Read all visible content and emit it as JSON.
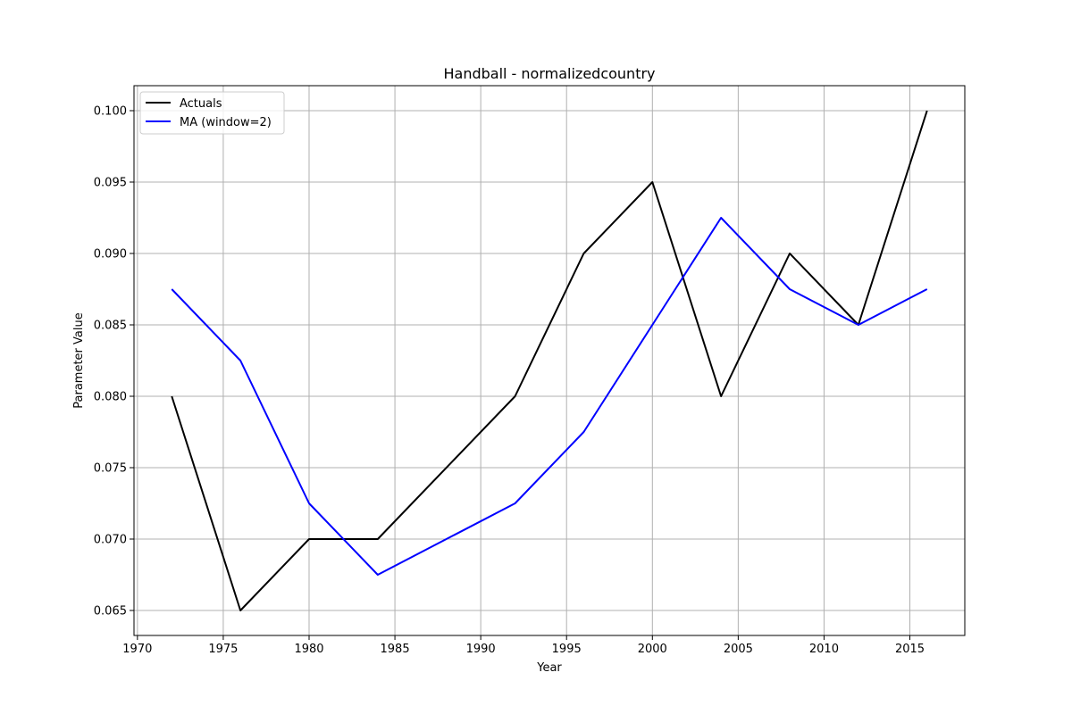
{
  "chart_data": {
    "type": "line",
    "title": "Handball - normalizedcountry",
    "xlabel": "Year",
    "ylabel": "Parameter Value",
    "xlim": [
      1969.8,
      2018.2
    ],
    "ylim": [
      0.06325,
      0.10175
    ],
    "xticks": [
      1970,
      1975,
      1980,
      1985,
      1990,
      1995,
      2000,
      2005,
      2010,
      2015
    ],
    "xtick_labels": [
      "1970",
      "1975",
      "1980",
      "1985",
      "1990",
      "1995",
      "2000",
      "2005",
      "2010",
      "2015"
    ],
    "yticks": [
      0.065,
      0.07,
      0.075,
      0.08,
      0.085,
      0.09,
      0.095,
      0.1
    ],
    "ytick_labels": [
      "0.065",
      "0.070",
      "0.075",
      "0.080",
      "0.085",
      "0.090",
      "0.095",
      "0.100"
    ],
    "grid": true,
    "legend_position": "top-left",
    "x": [
      1972,
      1976,
      1980,
      1984,
      1992,
      1996,
      2000,
      2004,
      2008,
      2012,
      2016
    ],
    "series": [
      {
        "name": "Actuals",
        "color": "#000000",
        "values": [
          0.08,
          0.065,
          0.07,
          0.07,
          0.08,
          0.09,
          0.095,
          0.08,
          0.09,
          0.085,
          0.1
        ]
      },
      {
        "name": "MA (window=2)",
        "color": "#0000ff",
        "values": [
          0.0875,
          0.0825,
          0.0725,
          0.0675,
          0.0725,
          0.0775,
          0.085,
          0.0925,
          0.0875,
          0.085,
          0.0875
        ]
      }
    ]
  }
}
